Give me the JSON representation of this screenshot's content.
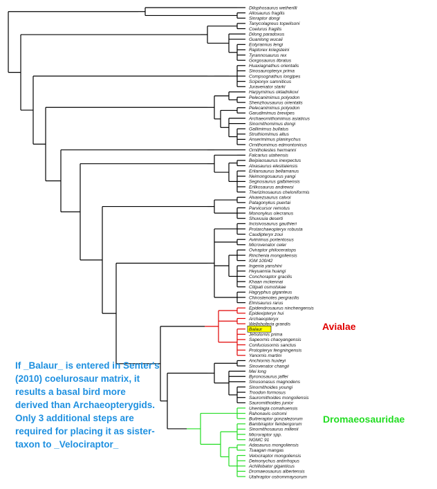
{
  "taxa": [
    "Dilophosaurus wetherilli",
    "Allosaurus fragilis",
    "Sinraptor dongi",
    "Tanycolagreus topwilsoni",
    "Coelurus fragilis",
    "Dilong paradoxus",
    "Guanlong wucaii",
    "Eotyrannus lengi",
    "Raptorex kriegsteini",
    "Tyrannosaurus rex",
    "Gorgosaurus libratus",
    "Huaxiagnathus orientalis",
    "Sinosauropteryx prima",
    "Compsognathus longipes",
    "Scipionyx samniticus",
    "Juravenator starki",
    "Harpymimus okladnikovi",
    "Pelecanimimus polyodon",
    "Shenzhousaurus orientalis",
    "Pelecanimimus polyodon",
    "Garudimimus brevipes",
    "Archaeornithomimus asiaticus",
    "Sinornithomimus dongi",
    "Gallimimus bullatus",
    "Struthiomimus altus",
    "Anserimimus planinychus",
    "Ornithomimus edmontonicus",
    "Ornitholestes hermanni",
    "Falcarius utahensis",
    "Beipiaosaurus inexpectus",
    "Alxasaurus elesitaiensis",
    "Erliansaurus bellamanus",
    "Neimongosaurus yangi",
    "Segnosaurus galbinensis",
    "Erlikosaurus andrewsi",
    "Therizinosaurus cheloniformis",
    "Alvarezsaurus calvoi",
    "Patagonykus puertai",
    "Parvicursor remotus",
    "Mononykus olecranus",
    "Shuvuuia deserti",
    "Incisivosaurus gauthieri",
    "Protarchaeopteryx robusta",
    "Caudipteryx zoui",
    "Avimimus portentosus",
    "Microvenator celer",
    "Oviraptor philoceratops",
    "Rinchenia mongoliensis",
    "IGM 100/42",
    "Ingenia yanshini",
    "Heyuannia huangi",
    "Conchoraptor gracilis",
    "Khaan mckennai",
    "Citipati osmolskae",
    "Hagryphus giganteus",
    "Chirostenotes pergracilis",
    "Elmisaurus rarus",
    "Epidendrosaurus ninchengensis",
    "Epidexipteryx hui",
    "Archaeopteryx",
    "Wellnhoferia grandis",
    "Balaur",
    "Jeholornis prima",
    "Sapeornis chaoyangensis",
    "Confuciusornis sanctus",
    "Protopteryx fengningensis",
    "Yanornis martini",
    "Anchiornis huxleyi",
    "Sinovenator changii",
    "Mei long",
    "Byronosaurus jaffei",
    "Sinusonasus magnodens",
    "Sinornithoides youngi",
    "Troodon formosus",
    "Saurornithoides mongoliensis",
    "Saurornithoides junior",
    "Unenlagia comahuensis",
    "Rahonavis ostromi",
    "Buitreraptor gonzalezorum",
    "Bambiraptor feinbergorum",
    "Sinornithosaurus millenii",
    "Microraptor spp.",
    "NGMC 91",
    "Adasaurus mongoliensis",
    "Tsaagan mangas",
    "Velociraptor mongoliensis",
    "Deinonychus antirrhopus",
    "Achillobator giganticus",
    "Dromaeosaurus albertensis",
    "Utahraptor ostrommaysorum"
  ],
  "annotations": {
    "note": "If _Balaur_ is entered in Senter's (2010) coelurosaur matrix, it results a basal bird more derived than Archaeopterygids. Only 3 additional steps are required for placing it as sister-taxon to _Velociraptor_",
    "avialae": "Avialae",
    "dromaeosauridae": "Dromaeosauridae"
  },
  "colors": {
    "default": "#000000",
    "avialae": "#e00000",
    "dromaeosauridae": "#22dd22",
    "note": "#1e90e0",
    "highlight": "#ffff00"
  },
  "highlighted_taxon": "Balaur",
  "tree": [
    [
      [
        0
      ],
      [
        1,
        2
      ]
    ],
    [
      [
        3,
        4
      ],
      [
        5,
        6,
        [
          7,
          8,
          9,
          10
        ]
      ]
    ],
    [
      [
        [
          11,
          12,
          13,
          14,
          15
        ]
      ]
    ],
    [
      [
        16,
        [
          17,
          18
        ]
      ],
      [
        [
          19,
          20
        ],
        [
          21,
          22,
          [
            23,
            24,
            25,
            26
          ]
        ]
      ]
    ],
    [
      27
    ],
    [
      [
        28
      ],
      [
        [
          29,
          30
        ],
        [
          31,
          32,
          33,
          34,
          35
        ]
      ]
    ],
    [
      [
        36,
        37
      ],
      [
        38,
        39,
        40
      ]
    ],
    [
      [
        41,
        42,
        43
      ],
      [
        44,
        45
      ],
      [
        [
          46,
          47,
          48
        ],
        [
          49,
          50,
          51,
          52,
          53
        ]
      ],
      [
        54,
        55,
        56
      ]
    ],
    [
      [
        57,
        58
      ],
      [
        59,
        60
      ],
      [
        61,
        62,
        63,
        64,
        65,
        66
      ]
    ],
    [
      [
        67,
        68
      ],
      [
        69,
        70,
        71,
        [
          72,
          73,
          74,
          75
        ]
      ]
    ],
    [
      [
        76,
        77,
        78
      ],
      [
        [
          79,
          80,
          81,
          82
        ],
        [
          [
            83,
            84
          ],
          [
            85,
            86,
            87,
            88,
            89
          ]
        ]
      ]
    ]
  ]
}
